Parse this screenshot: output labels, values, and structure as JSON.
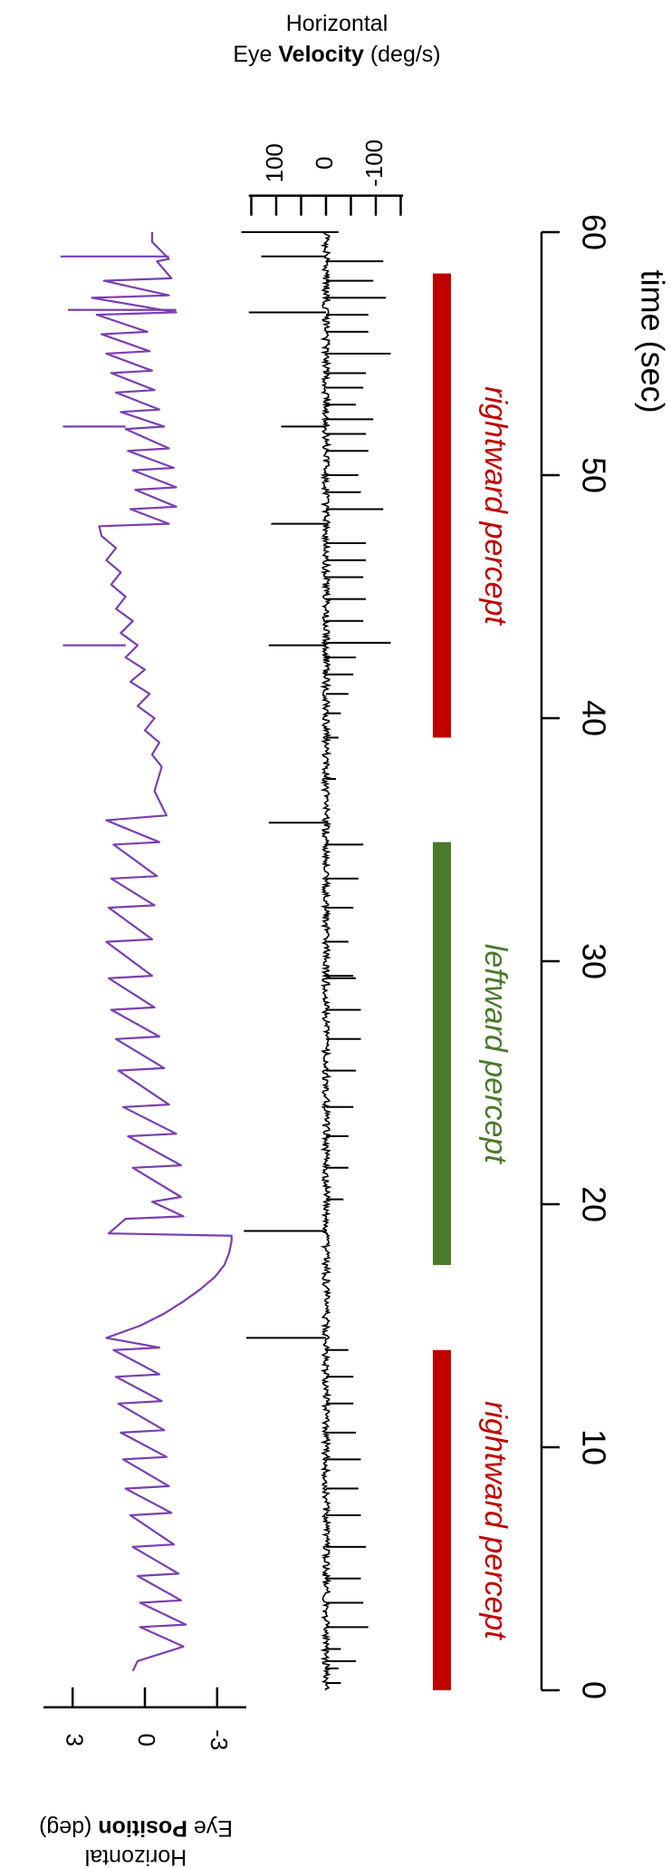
{
  "chart_data": {
    "type": "line",
    "orientation": "rotated-vertical",
    "time_axis": {
      "label": "time (sec)",
      "range": [
        0,
        60
      ],
      "ticks": [
        0,
        10,
        20,
        30,
        40,
        50,
        60
      ],
      "tick_labels": [
        "0",
        "10",
        "20",
        "30",
        "40",
        "50",
        "60"
      ]
    },
    "position_panel": {
      "label_line1": "Horizontal",
      "label_line2_prefix": "Eye ",
      "label_line2_bold": "Position",
      "label_line2_suffix": " (deg)",
      "ticks": [
        3,
        0,
        -3
      ],
      "tick_labels": [
        "3",
        "0",
        "-3"
      ],
      "range": [
        -4,
        4
      ],
      "color": "#7a3fb0",
      "series": {
        "name": "",
        "t": [
          0.8,
          1.2,
          1.8,
          2.6,
          2.7,
          3.6,
          3.7,
          4.7,
          4.8,
          5.9,
          6.0,
          7.2,
          7.3,
          8.3,
          8.4,
          9.5,
          9.6,
          10.6,
          10.7,
          11.8,
          11.9,
          12.9,
          13.0,
          14.0,
          14.1,
          14.5,
          15.0,
          15.5,
          16.0,
          16.5,
          17.0,
          17.5,
          18.0,
          18.5,
          18.7,
          18.8,
          19.4,
          19.5,
          20.1,
          20.3,
          21.5,
          21.6,
          22.8,
          22.9,
          24.0,
          24.1,
          25.5,
          25.6,
          26.8,
          26.9,
          28.0,
          28.1,
          29.3,
          29.4,
          30.8,
          30.9,
          32.2,
          32.3,
          33.4,
          33.5,
          34.8,
          34.9,
          35.8,
          36.0,
          37.0,
          38.0,
          38.5,
          39.0,
          39.5,
          40.0,
          40.5,
          41.0,
          41.5,
          42.0,
          42.5,
          43.0,
          43.5,
          44.0,
          44.5,
          45.0,
          45.5,
          46.0,
          46.5,
          47.0,
          47.5,
          47.9,
          48.0,
          48.6,
          48.7,
          49.4,
          49.5,
          50.2,
          50.3,
          51.0,
          51.1,
          51.9,
          52.0,
          52.6,
          52.7,
          53.4,
          53.5,
          54.2,
          54.3,
          55.0,
          55.1,
          55.8,
          55.9,
          56.6,
          56.7,
          57.3,
          57.4,
          58.0,
          58.1,
          58.8,
          58.9,
          59.5,
          59.6,
          60.0
        ],
        "deg": [
          0.5,
          0.3,
          -1.6,
          0.2,
          -1.7,
          0.2,
          -1.5,
          0.3,
          -1.4,
          0.5,
          -1.2,
          0.6,
          -1.1,
          0.8,
          -1.0,
          0.9,
          -0.9,
          1.0,
          -0.8,
          1.1,
          -0.7,
          1.2,
          -0.6,
          1.3,
          -0.6,
          1.6,
          0.2,
          -0.8,
          -1.6,
          -2.3,
          -2.9,
          -3.3,
          -3.5,
          -3.6,
          -3.6,
          1.5,
          0.8,
          -1.6,
          -0.3,
          -1.5,
          0.5,
          -1.5,
          0.7,
          -1.3,
          0.9,
          -1.0,
          1.1,
          -0.8,
          1.2,
          -0.6,
          1.4,
          -0.4,
          1.5,
          -0.3,
          1.6,
          -0.3,
          1.5,
          -0.4,
          1.4,
          -0.5,
          1.3,
          -0.6,
          1.6,
          -0.9,
          -0.4,
          -0.7,
          -0.3,
          -0.6,
          0.0,
          -0.4,
          0.3,
          -0.2,
          0.6,
          0.0,
          0.8,
          0.3,
          1.0,
          0.5,
          1.2,
          0.8,
          1.4,
          1.0,
          1.6,
          1.2,
          1.8,
          1.9,
          -1.0,
          0.6,
          -1.3,
          0.4,
          -1.3,
          0.5,
          -1.2,
          0.7,
          -1.0,
          0.8,
          -0.8,
          1.0,
          -0.6,
          1.2,
          -0.4,
          1.4,
          -0.3,
          1.6,
          -0.2,
          1.8,
          -0.1,
          2.0,
          -1.3,
          2.2,
          -1.0,
          1.7,
          -1.1,
          -0.5,
          -1.0,
          -0.4,
          -0.3,
          -0.3
        ],
        "spikes": [
          {
            "t": 43.0,
            "to": 3.4
          },
          {
            "t": 52.0,
            "to": 3.4
          },
          {
            "t": 56.8,
            "to": 3.2
          },
          {
            "t": 59.0,
            "to": 3.5
          }
        ]
      }
    },
    "velocity_panel": {
      "label_line1": "Horizontal",
      "label_line2_prefix": "Eye ",
      "label_line2_bold": "Velocity",
      "label_line2_suffix": " (deg/s)",
      "ticks": [
        100,
        0,
        -100
      ],
      "tick_labels": [
        "100",
        "0",
        "-100"
      ],
      "minor_ticks": [
        150,
        50,
        -50,
        -150
      ],
      "range": [
        -160,
        160
      ],
      "color": "#000000",
      "spikes": [
        {
          "t": 0.3,
          "v": -30
        },
        {
          "t": 0.9,
          "v": -25
        },
        {
          "t": 1.2,
          "v": -60
        },
        {
          "t": 1.7,
          "v": -30
        },
        {
          "t": 2.6,
          "v": -85
        },
        {
          "t": 3.6,
          "v": -75
        },
        {
          "t": 4.6,
          "v": -70
        },
        {
          "t": 5.9,
          "v": -80
        },
        {
          "t": 7.2,
          "v": -70
        },
        {
          "t": 8.3,
          "v": -65
        },
        {
          "t": 9.5,
          "v": -70
        },
        {
          "t": 10.6,
          "v": -60
        },
        {
          "t": 11.8,
          "v": -55
        },
        {
          "t": 12.9,
          "v": -55
        },
        {
          "t": 14.0,
          "v": -45
        },
        {
          "t": 14.5,
          "v": 160
        },
        {
          "t": 18.9,
          "v": 165
        },
        {
          "t": 20.2,
          "v": -35
        },
        {
          "t": 21.5,
          "v": -45
        },
        {
          "t": 22.8,
          "v": -45
        },
        {
          "t": 24.0,
          "v": -55
        },
        {
          "t": 25.5,
          "v": -60
        },
        {
          "t": 26.8,
          "v": -70
        },
        {
          "t": 28.0,
          "v": -70
        },
        {
          "t": 29.3,
          "v": -60
        },
        {
          "t": 29.4,
          "v": -55
        },
        {
          "t": 30.8,
          "v": -45
        },
        {
          "t": 32.2,
          "v": -55
        },
        {
          "t": 33.4,
          "v": -65
        },
        {
          "t": 34.8,
          "v": -75
        },
        {
          "t": 35.7,
          "v": 115
        },
        {
          "t": 37.5,
          "v": -20
        },
        {
          "t": 39.2,
          "v": -25
        },
        {
          "t": 40.2,
          "v": -30
        },
        {
          "t": 41.0,
          "v": -45
        },
        {
          "t": 41.8,
          "v": -55
        },
        {
          "t": 42.5,
          "v": -60
        },
        {
          "t": 43.0,
          "v": 115
        },
        {
          "t": 43.1,
          "v": -130
        },
        {
          "t": 44.0,
          "v": -75
        },
        {
          "t": 44.9,
          "v": -80
        },
        {
          "t": 45.8,
          "v": -75
        },
        {
          "t": 46.5,
          "v": -80
        },
        {
          "t": 47.2,
          "v": -80
        },
        {
          "t": 48.0,
          "v": 110
        },
        {
          "t": 48.6,
          "v": -115
        },
        {
          "t": 49.3,
          "v": -70
        },
        {
          "t": 50.0,
          "v": -65
        },
        {
          "t": 51.0,
          "v": -85
        },
        {
          "t": 51.7,
          "v": -80
        },
        {
          "t": 52.0,
          "v": 90
        },
        {
          "t": 52.3,
          "v": -95
        },
        {
          "t": 52.9,
          "v": -60
        },
        {
          "t": 53.6,
          "v": -75
        },
        {
          "t": 54.2,
          "v": -80
        },
        {
          "t": 55.0,
          "v": -130
        },
        {
          "t": 55.9,
          "v": -85
        },
        {
          "t": 56.6,
          "v": -85
        },
        {
          "t": 56.7,
          "v": 155
        },
        {
          "t": 57.3,
          "v": -120
        },
        {
          "t": 58.0,
          "v": -95
        },
        {
          "t": 58.8,
          "v": -115
        },
        {
          "t": 59.0,
          "v": 130
        },
        {
          "t": 60.0,
          "v": -25
        },
        {
          "t": 60.0,
          "v": 210
        }
      ]
    },
    "percepts": [
      {
        "label": "rightward percept",
        "start": 0.0,
        "end": 14.0,
        "color": "#c00000"
      },
      {
        "label": "leftward percept",
        "start": 17.5,
        "end": 34.9,
        "color": "#4a7a2c"
      },
      {
        "label": "rightward percept",
        "start": 39.2,
        "end": 58.3,
        "color": "#c00000"
      }
    ]
  }
}
